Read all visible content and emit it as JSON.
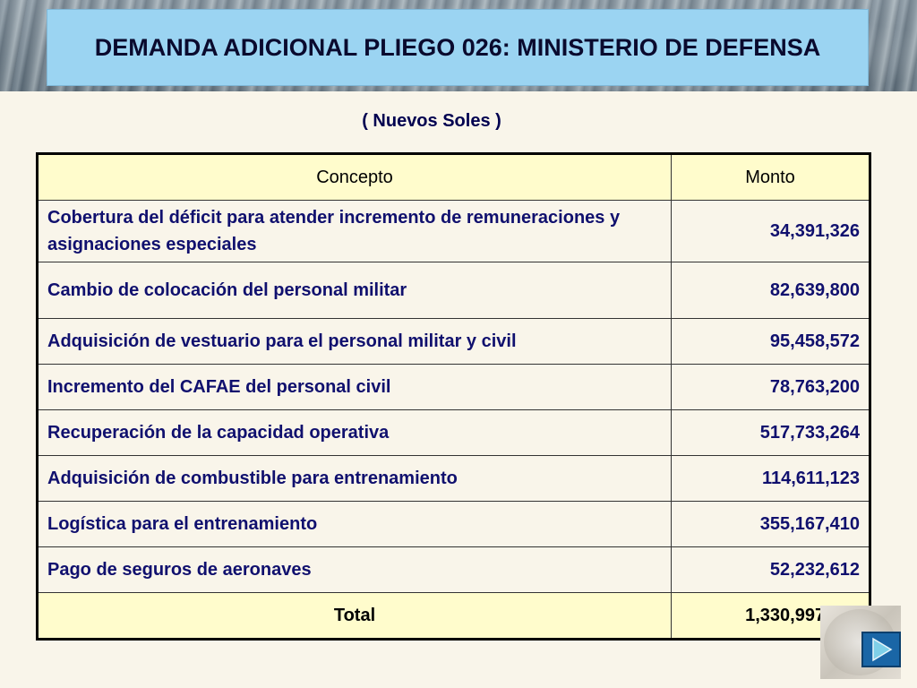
{
  "slide": {
    "title": "DEMANDA ADICIONAL PLIEGO 026: MINISTERIO DE DEFENSA",
    "units": "( Nuevos Soles )"
  },
  "table": {
    "headers": {
      "concept": "Concepto",
      "amount": "Monto"
    },
    "rows": [
      {
        "concept": "Cobertura del déficit para atender incremento de remuneraciones y asignaciones especiales",
        "amount": "34,391,326"
      },
      {
        "concept": "Cambio de colocación del personal militar",
        "amount": "82,639,800"
      },
      {
        "concept": "Adquisición de vestuario para el personal militar y civil",
        "amount": "95,458,572"
      },
      {
        "concept": "Incremento del CAFAE del personal civil",
        "amount": "78,763,200"
      },
      {
        "concept": "Recuperación de la capacidad operativa",
        "amount": "517,733,264"
      },
      {
        "concept": "Adquisición de combustible para entrenamiento",
        "amount": "114,611,123"
      },
      {
        "concept": "Logística para el entrenamiento",
        "amount": "355,167,410"
      },
      {
        "concept": "Pago de seguros de aeronaves",
        "amount": "52,232,612"
      }
    ],
    "total": {
      "label": "Total",
      "amount": "1,330,997,307"
    }
  },
  "nav": {
    "next_icon": "play-arrow-icon"
  },
  "colors": {
    "title_bg": "#9bd4f2",
    "header_bg": "#fffccc",
    "page_bg": "#f9f5ea",
    "text": "#10106e",
    "next_button": "#1a66a6"
  }
}
